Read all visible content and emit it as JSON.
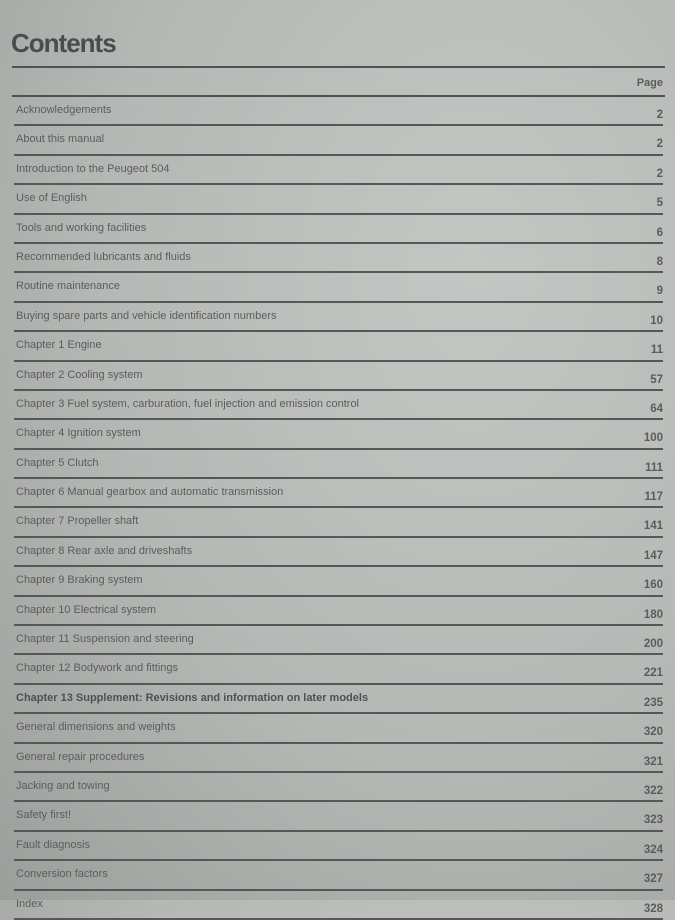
{
  "title": "Contents",
  "page_header": "Page",
  "entries": [
    {
      "label": "Acknowledgements",
      "page": "2"
    },
    {
      "label": "About this manual",
      "page": "2"
    },
    {
      "label": "Introduction to the Peugeot 504",
      "page": "2"
    },
    {
      "label": "Use of English",
      "page": "5"
    },
    {
      "label": "Tools and working facilities",
      "page": "6"
    },
    {
      "label": "Recommended lubricants and fluids",
      "page": "8"
    },
    {
      "label": "Routine maintenance",
      "page": "9"
    },
    {
      "label": "Buying spare parts and vehicle identification numbers",
      "page": "10"
    },
    {
      "label": "Chapter 1  Engine",
      "page": "11"
    },
    {
      "label": "Chapter 2  Cooling system",
      "page": "57"
    },
    {
      "label": "Chapter 3  Fuel system, carburation, fuel injection and emission control",
      "page": "64"
    },
    {
      "label": "Chapter 4  Ignition system",
      "page": "100"
    },
    {
      "label": "Chapter 5  Clutch",
      "page": "111"
    },
    {
      "label": "Chapter 6  Manual gearbox and automatic transmission",
      "page": "117"
    },
    {
      "label": "Chapter 7  Propeller shaft",
      "page": "141"
    },
    {
      "label": "Chapter 8  Rear axle and driveshafts",
      "page": "147"
    },
    {
      "label": "Chapter 9  Braking system",
      "page": "160"
    },
    {
      "label": "Chapter 10  Electrical system",
      "page": "180"
    },
    {
      "label": "Chapter 11  Suspension and steering",
      "page": "200"
    },
    {
      "label": "Chapter 12  Bodywork and fittings",
      "page": "221"
    },
    {
      "label": "Chapter 13  Supplement: Revisions and information on later models",
      "page": "235",
      "bold": true
    },
    {
      "label": "General dimensions and weights",
      "page": "320"
    },
    {
      "label": "General repair procedures",
      "page": "321"
    },
    {
      "label": "Jacking and towing",
      "page": "322"
    },
    {
      "label": "Safety first!",
      "page": "323"
    },
    {
      "label": "Fault diagnosis",
      "page": "324"
    },
    {
      "label": "Conversion factors",
      "page": "327"
    },
    {
      "label": "Index",
      "page": "328"
    }
  ]
}
